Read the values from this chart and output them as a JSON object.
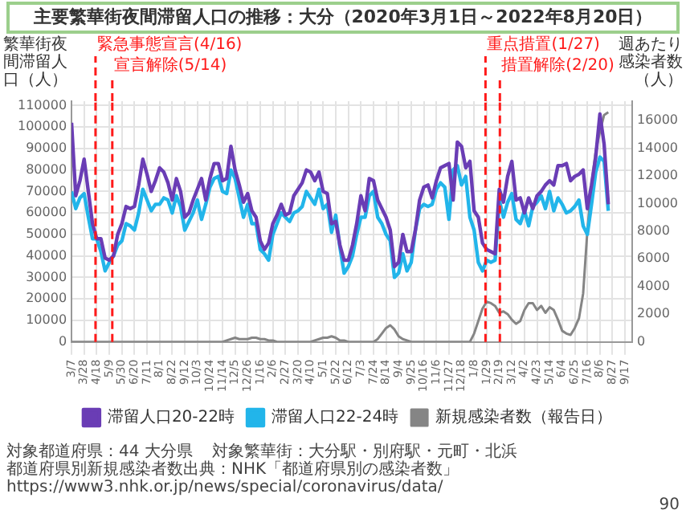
{
  "chart_data": {
    "type": "line",
    "title": "主要繁華街夜間滞留人口の推移：大分（2020年3月1日～2022年8月20日）",
    "ylabel": "繁華街夜間滞留人口（人）",
    "y2label": "週あたり感染者数（人）",
    "x": [
      "2020-03-07",
      "2020-03-14",
      "2020-03-21",
      "2020-03-28",
      "2020-04-04",
      "2020-04-11",
      "2020-04-18",
      "2020-04-25",
      "2020-05-02",
      "2020-05-09",
      "2020-05-16",
      "2020-05-23",
      "2020-05-30",
      "2020-06-06",
      "2020-06-13",
      "2020-06-20",
      "2020-06-27",
      "2020-07-04",
      "2020-07-11",
      "2020-07-18",
      "2020-07-25",
      "2020-08-01",
      "2020-08-08",
      "2020-08-15",
      "2020-08-22",
      "2020-08-29",
      "2020-09-05",
      "2020-09-12",
      "2020-09-19",
      "2020-09-26",
      "2020-10-03",
      "2020-10-10",
      "2020-10-17",
      "2020-10-24",
      "2020-10-31",
      "2020-11-07",
      "2020-11-14",
      "2020-11-21",
      "2020-11-28",
      "2020-12-05",
      "2020-12-12",
      "2020-12-19",
      "2020-12-26",
      "2021-01-02",
      "2021-01-09",
      "2021-01-16",
      "2021-01-23",
      "2021-01-30",
      "2021-02-06",
      "2021-02-13",
      "2021-02-20",
      "2021-02-27",
      "2021-03-06",
      "2021-03-13",
      "2021-03-20",
      "2021-03-27",
      "2021-04-03",
      "2021-04-10",
      "2021-04-17",
      "2021-04-24",
      "2021-05-01",
      "2021-05-08",
      "2021-05-15",
      "2021-05-22",
      "2021-05-29",
      "2021-06-05",
      "2021-06-12",
      "2021-06-19",
      "2021-06-26",
      "2021-07-03",
      "2021-07-10",
      "2021-07-17",
      "2021-07-24",
      "2021-07-31",
      "2021-08-07",
      "2021-08-14",
      "2021-08-21",
      "2021-08-28",
      "2021-09-04",
      "2021-09-11",
      "2021-09-18",
      "2021-09-25",
      "2021-10-02",
      "2021-10-09",
      "2021-10-16",
      "2021-10-23",
      "2021-10-30",
      "2021-11-06",
      "2021-11-13",
      "2021-11-20",
      "2021-11-27",
      "2021-12-04",
      "2021-12-11",
      "2021-12-18",
      "2021-12-25",
      "2022-01-01",
      "2022-01-08",
      "2022-01-15",
      "2022-01-22",
      "2022-01-29",
      "2022-02-05",
      "2022-02-12",
      "2022-02-19",
      "2022-02-26",
      "2022-03-05",
      "2022-03-12",
      "2022-03-19",
      "2022-03-26",
      "2022-04-02",
      "2022-04-09",
      "2022-04-16",
      "2022-04-23",
      "2022-04-30",
      "2022-05-07",
      "2022-05-14",
      "2022-05-21",
      "2022-05-28",
      "2022-06-04",
      "2022-06-11",
      "2022-06-18",
      "2022-06-25",
      "2022-07-02",
      "2022-07-09",
      "2022-07-16",
      "2022-07-23",
      "2022-07-30",
      "2022-08-06",
      "2022-08-13",
      "2022-08-20"
    ],
    "series": [
      {
        "name": "滞留人口20-22時",
        "color": "#6a3db5",
        "values": [
          102000,
          68000,
          75000,
          85000,
          70000,
          55000,
          48000,
          48000,
          39000,
          38000,
          40000,
          50000,
          55000,
          63000,
          62000,
          63000,
          73000,
          85000,
          78000,
          70000,
          75000,
          81000,
          79000,
          74000,
          66000,
          76000,
          70000,
          58000,
          60000,
          66000,
          71000,
          76000,
          66000,
          76000,
          83000,
          83000,
          75000,
          76000,
          91000,
          80000,
          73000,
          65000,
          69000,
          61000,
          58000,
          47000,
          43000,
          46000,
          55000,
          59000,
          64000,
          59000,
          60000,
          68000,
          71000,
          74000,
          80000,
          79000,
          75000,
          79000,
          70000,
          69000,
          55000,
          56000,
          45000,
          38000,
          38000,
          45000,
          55000,
          68000,
          61000,
          76000,
          75000,
          66000,
          62000,
          58000,
          52000,
          35000,
          37000,
          50000,
          42000,
          42000,
          52000,
          66000,
          72000,
          73000,
          67000,
          75000,
          81000,
          82000,
          83000,
          66000,
          93000,
          91000,
          81000,
          84000,
          61000,
          58000,
          46000,
          43000,
          42000,
          41000,
          71000,
          65000,
          77000,
          84000,
          66000,
          67000,
          60000,
          67000,
          62000,
          68000,
          70000,
          73000,
          75000,
          73000,
          82000,
          82000,
          83000,
          75000,
          77000,
          78000,
          80000,
          62000,
          73000,
          86000,
          106000,
          92000,
          64000
        ]
      },
      {
        "name": "滞留人口22-24時",
        "color": "#22b5ea",
        "values": [
          70000,
          62000,
          67000,
          69000,
          58000,
          48000,
          48000,
          42000,
          33000,
          37000,
          40000,
          45000,
          47000,
          55000,
          54000,
          52000,
          60000,
          71000,
          66000,
          61000,
          64000,
          64000,
          67000,
          66000,
          60000,
          68000,
          63000,
          52000,
          56000,
          60000,
          66000,
          57000,
          64000,
          72000,
          76000,
          77000,
          70000,
          69000,
          80000,
          76000,
          67000,
          58000,
          64000,
          55000,
          55000,
          43000,
          41000,
          38000,
          50000,
          55000,
          60000,
          58000,
          56000,
          60000,
          61000,
          63000,
          70000,
          67000,
          64000,
          71000,
          62000,
          64000,
          51000,
          59000,
          44000,
          32000,
          35000,
          40000,
          50000,
          58000,
          58000,
          68000,
          70000,
          58000,
          55000,
          50000,
          47000,
          30000,
          32000,
          41000,
          33000,
          37000,
          52000,
          62000,
          64000,
          63000,
          64000,
          71000,
          74000,
          72000,
          57000,
          80000,
          82000,
          73000,
          77000,
          58000,
          52000,
          37000,
          33000,
          38000,
          37000,
          38000,
          66000,
          58000,
          65000,
          69000,
          57000,
          55000,
          61000,
          54000,
          63000,
          65000,
          68000,
          62000,
          70000,
          61000,
          67000,
          64000,
          60000,
          61000,
          63000,
          66000,
          54000,
          50000,
          64000,
          79000,
          86000,
          84000,
          61000
        ]
      },
      {
        "name": "新規感染者数（報告日）",
        "color": "#858585",
        "axis": "y2",
        "values": [
          0,
          0,
          0,
          0,
          0,
          0,
          0,
          0,
          0,
          0,
          0,
          0,
          0,
          0,
          0,
          0,
          0,
          0,
          0,
          0,
          0,
          0,
          0,
          0,
          0,
          0,
          0,
          0,
          0,
          0,
          0,
          0,
          0,
          0,
          0,
          0,
          0,
          100,
          200,
          300,
          200,
          200,
          200,
          300,
          300,
          200,
          200,
          100,
          100,
          0,
          0,
          0,
          0,
          0,
          0,
          0,
          0,
          0,
          100,
          200,
          300,
          300,
          400,
          300,
          100,
          100,
          0,
          0,
          0,
          0,
          0,
          0,
          0,
          200,
          600,
          1000,
          1200,
          900,
          400,
          200,
          100,
          0,
          0,
          0,
          0,
          0,
          0,
          0,
          0,
          0,
          0,
          0,
          0,
          0,
          0,
          0,
          600,
          1500,
          2400,
          2900,
          2800,
          2600,
          2100,
          2200,
          2000,
          1600,
          1300,
          1500,
          2300,
          2800,
          2800,
          2300,
          2600,
          2100,
          2500,
          2300,
          1600,
          800,
          600,
          500,
          1000,
          1700,
          3500,
          8000,
          11400,
          13800,
          15200,
          16400,
          16600
        ]
      }
    ],
    "xlim": [
      "2020-03-07",
      "2022-09-29"
    ],
    "xticks": [
      {
        "value": "2020-03-07",
        "label": "3/7"
      },
      {
        "value": "2020-03-28",
        "label": "3/28"
      },
      {
        "value": "2020-04-18",
        "label": "4/18"
      },
      {
        "value": "2020-05-09",
        "label": "5/9"
      },
      {
        "value": "2020-05-30",
        "label": "5/30"
      },
      {
        "value": "2020-06-20",
        "label": "6/20"
      },
      {
        "value": "2020-07-11",
        "label": "7/11"
      },
      {
        "value": "2020-08-01",
        "label": "8/1"
      },
      {
        "value": "2020-08-22",
        "label": "8/22"
      },
      {
        "value": "2020-09-12",
        "label": "9/12"
      },
      {
        "value": "2020-10-03",
        "label": "10/3"
      },
      {
        "value": "2020-10-24",
        "label": "10/24"
      },
      {
        "value": "2020-11-14",
        "label": "11/14"
      },
      {
        "value": "2020-12-05",
        "label": "12/5"
      },
      {
        "value": "2020-12-26",
        "label": "12/26"
      },
      {
        "value": "2021-01-16",
        "label": "1/16"
      },
      {
        "value": "2021-02-06",
        "label": "2/6"
      },
      {
        "value": "2021-02-27",
        "label": "2/27"
      },
      {
        "value": "2021-03-20",
        "label": "3/20"
      },
      {
        "value": "2021-04-10",
        "label": "4/10"
      },
      {
        "value": "2021-05-01",
        "label": "5/1"
      },
      {
        "value": "2021-05-22",
        "label": "5/22"
      },
      {
        "value": "2021-06-12",
        "label": "6/12"
      },
      {
        "value": "2021-07-03",
        "label": "7/3"
      },
      {
        "value": "2021-07-24",
        "label": "7/24"
      },
      {
        "value": "2021-08-14",
        "label": "8/14"
      },
      {
        "value": "2021-09-04",
        "label": "9/4"
      },
      {
        "value": "2021-09-25",
        "label": "9/25"
      },
      {
        "value": "2021-10-16",
        "label": "10/16"
      },
      {
        "value": "2021-11-06",
        "label": "11/6"
      },
      {
        "value": "2021-11-27",
        "label": "11/27"
      },
      {
        "value": "2021-12-18",
        "label": "12/18"
      },
      {
        "value": "2022-01-08",
        "label": "1/8"
      },
      {
        "value": "2022-01-29",
        "label": "1/29"
      },
      {
        "value": "2022-02-19",
        "label": "2/19"
      },
      {
        "value": "2022-03-12",
        "label": "3/12"
      },
      {
        "value": "2022-04-02",
        "label": "4/2"
      },
      {
        "value": "2022-04-23",
        "label": "4/23"
      },
      {
        "value": "2022-05-14",
        "label": "5/14"
      },
      {
        "value": "2022-06-04",
        "label": "6/4"
      },
      {
        "value": "2022-06-25",
        "label": "6/25"
      },
      {
        "value": "2022-07-16",
        "label": "7/16"
      },
      {
        "value": "2022-08-06",
        "label": "8/6"
      },
      {
        "value": "2022-08-27",
        "label": "8/27"
      },
      {
        "value": "2022-09-17",
        "label": "9/17"
      }
    ],
    "ylim": [
      0,
      112000
    ],
    "yticks": [
      0,
      10000,
      20000,
      30000,
      40000,
      50000,
      60000,
      70000,
      80000,
      90000,
      100000,
      110000
    ],
    "y2lim": [
      0,
      17400
    ],
    "y2ticks": [
      0,
      2000,
      4000,
      6000,
      8000,
      10000,
      12000,
      14000,
      16000
    ],
    "ref_lines": [
      {
        "axis": "x",
        "value": "2020-04-16",
        "label": "緊急事態宣言(4/16)",
        "color": "#ff1a1a",
        "line_style": "dashed"
      },
      {
        "axis": "x",
        "value": "2020-05-14",
        "label": "宣言解除(5/14)",
        "color": "#ff1a1a",
        "line_style": "dashed"
      },
      {
        "axis": "x",
        "value": "2022-01-27",
        "label": "重点措置(1/27)",
        "color": "#ff1a1a",
        "line_style": "dashed"
      },
      {
        "axis": "x",
        "value": "2022-02-20",
        "label": "措置解除(2/20)",
        "color": "#ff1a1a",
        "line_style": "dashed"
      }
    ],
    "grid": true,
    "legend": "bottom",
    "marker": "none",
    "line_style": "solid",
    "annotations": [
      "対象都道府県：44 大分県",
      "対象繁華街：大分駅・別府駅・元町・北浜",
      "都道府県別新規感染者数出典：NHK「都道府県別の感染者数」https://www3.nhk.or.jp/news/special/coronavirus/data/",
      "90"
    ]
  }
}
